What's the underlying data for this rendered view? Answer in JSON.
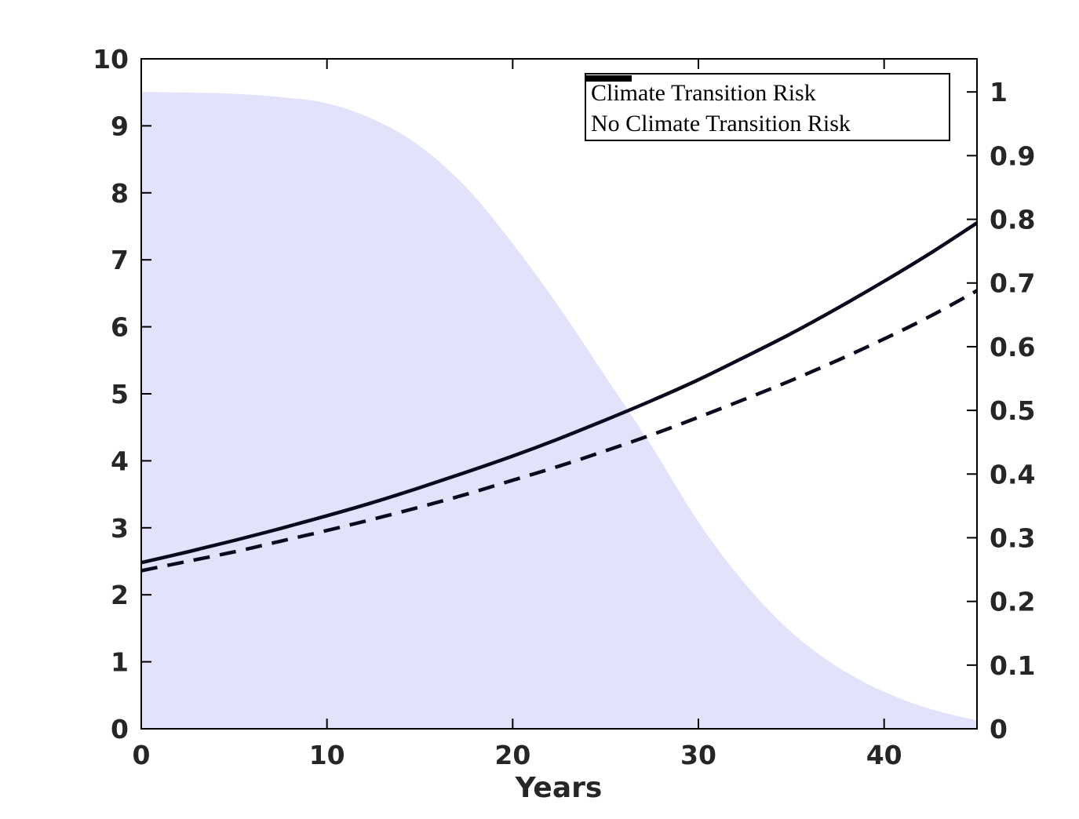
{
  "figure": {
    "background": "#ffffff",
    "frame_color": "#000000",
    "tick_label_color": "#262626",
    "curve_color": "#0a0a1c",
    "area_fill_color": "#e2e2fa",
    "legend": {
      "position": "top-right",
      "entries": [
        {
          "label": "Climate Transition Risk",
          "style": "solid"
        },
        {
          "label": "No Climate Transition Risk",
          "style": "dashed"
        }
      ]
    }
  },
  "chart_data": {
    "type": "line",
    "title": "",
    "xlabel": "Years",
    "ylabel_left": "",
    "ylabel_right": "",
    "grid": false,
    "xlim": [
      0,
      45
    ],
    "x_tick_values": [
      0,
      10,
      20,
      30,
      40
    ],
    "x_tick_labels": [
      "0",
      "10",
      "20",
      "30",
      "40"
    ],
    "left_axis": {
      "lim": [
        0,
        10
      ],
      "tick_values": [
        0,
        1,
        2,
        3,
        4,
        5,
        6,
        7,
        8,
        9,
        10
      ],
      "tick_labels": [
        "0",
        "1",
        "2",
        "3",
        "4",
        "5",
        "6",
        "7",
        "8",
        "9",
        "10"
      ]
    },
    "right_axis": {
      "lim": [
        0,
        1.052
      ],
      "tick_values": [
        0,
        0.1,
        0.2,
        0.3,
        0.4,
        0.5,
        0.6,
        0.7,
        0.8,
        0.9,
        1
      ],
      "tick_labels": [
        "0",
        "0.1",
        "0.2",
        "0.3",
        "0.4",
        "0.5",
        "0.6",
        "0.7",
        "0.8",
        "0.9",
        "1"
      ]
    },
    "x": [
      0,
      2.5,
      5,
      7.5,
      10,
      12.5,
      15,
      17.5,
      20,
      22.5,
      25,
      27.5,
      30,
      32.5,
      35,
      37.5,
      40,
      42.5,
      45
    ],
    "series": [
      {
        "name": "Climate Transition Risk",
        "axis": "left",
        "style": "solid",
        "values": [
          2.48,
          2.64,
          2.81,
          2.99,
          3.18,
          3.38,
          3.6,
          3.83,
          4.07,
          4.33,
          4.61,
          4.9,
          5.21,
          5.55,
          5.9,
          6.28,
          6.68,
          7.1,
          7.55
        ]
      },
      {
        "name": "No Climate Transition Risk",
        "axis": "left",
        "style": "dashed",
        "values": [
          2.36,
          2.5,
          2.64,
          2.8,
          2.96,
          3.13,
          3.31,
          3.5,
          3.71,
          3.92,
          4.15,
          4.39,
          4.65,
          4.92,
          5.2,
          5.5,
          5.82,
          6.16,
          6.54
        ]
      },
      {
        "name": "Shaded probability region",
        "axis": "right",
        "style": "area",
        "values": [
          1.0,
          0.999,
          0.997,
          0.992,
          0.982,
          0.957,
          0.915,
          0.85,
          0.762,
          0.662,
          0.553,
          0.443,
          0.325,
          0.228,
          0.152,
          0.097,
          0.058,
          0.031,
          0.013
        ]
      }
    ]
  }
}
